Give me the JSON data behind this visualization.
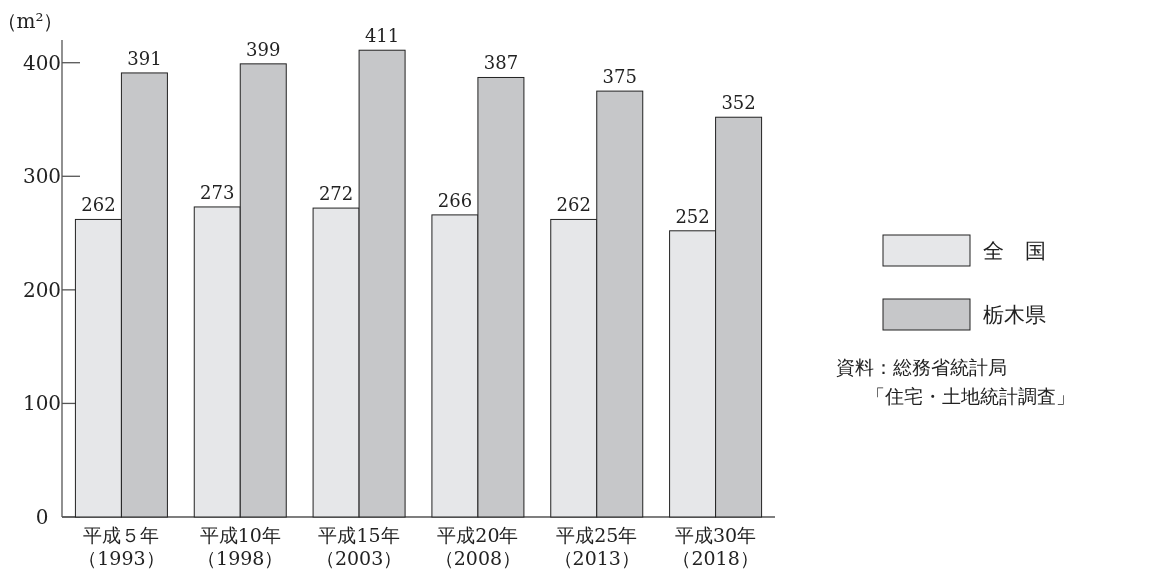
{
  "chart_data": {
    "type": "bar",
    "ylabel": "（m²）",
    "categories": [
      "平成５年（1993）",
      "平成10年（1998）",
      "平成15年（2003）",
      "平成20年（2008）",
      "平成25年（2013）",
      "平成30年（2018）"
    ],
    "series": [
      {
        "name": "全　国",
        "color": "#e6e7e9",
        "values": [
          262,
          273,
          272,
          266,
          262,
          252
        ]
      },
      {
        "name": "栃木県",
        "color": "#c6c7c9",
        "values": [
          391,
          399,
          411,
          387,
          375,
          352
        ]
      }
    ],
    "ylim": [
      0,
      420
    ],
    "yticks": [
      0,
      100,
      200,
      300,
      400
    ],
    "data_labels": true,
    "legend": "right",
    "annotations": [
      "資料：総務省統計局「住宅・土地統計調査」"
    ]
  }
}
